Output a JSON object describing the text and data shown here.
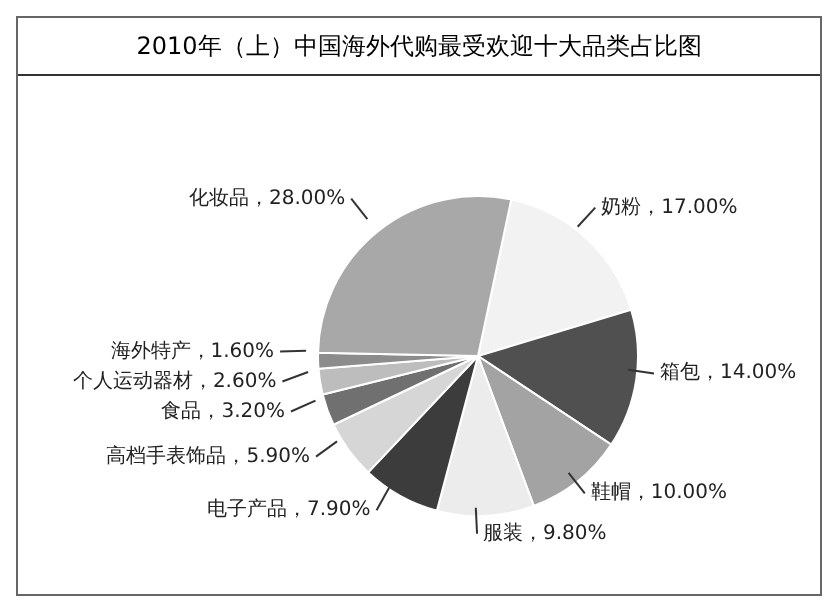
{
  "chart_data": {
    "type": "pie",
    "title": "2010年（上）中国海外代购最受欢迎十大品类占比图",
    "categories": [
      "奶粉",
      "箱包",
      "鞋帽",
      "服装",
      "电子产品",
      "高档手表饰品",
      "食品",
      "个人运动器材",
      "海外特产",
      "化妆品"
    ],
    "values": [
      17,
      14,
      10,
      9.8,
      7.9,
      5.9,
      3.2,
      2.6,
      1.6,
      28
    ],
    "value_labels": [
      "17.00%",
      "14.00%",
      "10.00%",
      "9.80%",
      "7.90%",
      "5.90%",
      "3.20%",
      "2.60%",
      "1.60%",
      "28.00%"
    ],
    "colors": [
      "#f2f2f2",
      "#505050",
      "#a3a3a3",
      "#ececec",
      "#3c3c3c",
      "#d6d6d6",
      "#707070",
      "#bdbdbd",
      "#8c8c8c",
      "#a8a8a8"
    ],
    "legend": false
  }
}
